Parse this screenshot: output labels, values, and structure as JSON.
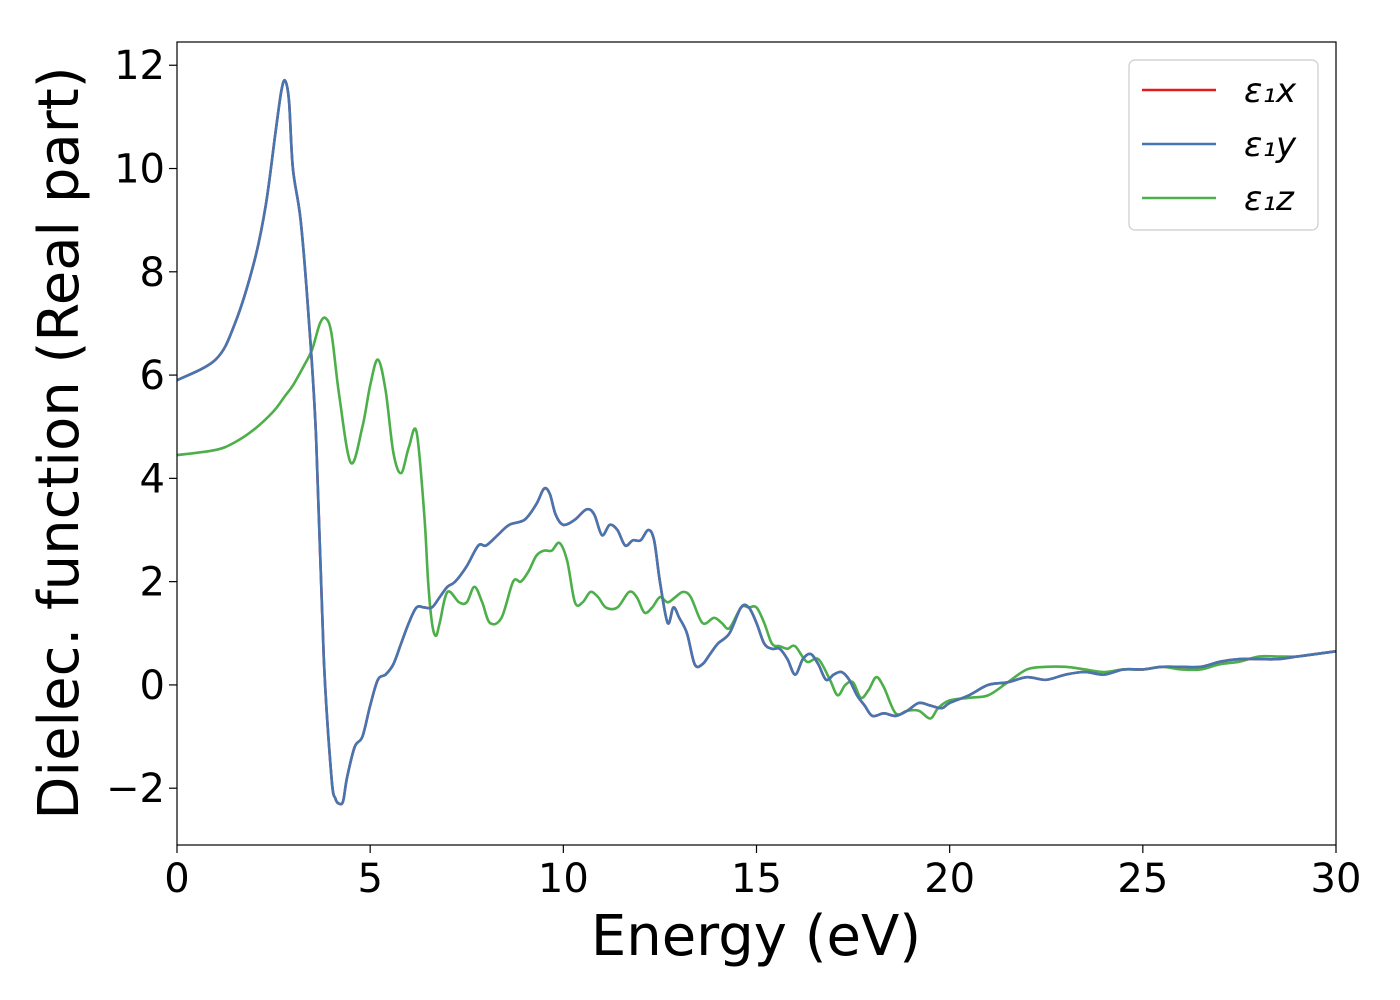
{
  "chart_data": {
    "type": "line",
    "xlabel": "Energy (eV)",
    "ylabel": "Dielec. function (Real part)",
    "xlim": [
      0,
      30
    ],
    "ylim": [
      -3.1,
      12.45
    ],
    "xticks": [
      0,
      5,
      10,
      15,
      20,
      25,
      30
    ],
    "xtick_labels": [
      "0",
      "5",
      "10",
      "15",
      "20",
      "25",
      "30"
    ],
    "yticks": [
      -2,
      0,
      2,
      4,
      6,
      8,
      10,
      12
    ],
    "ytick_labels": [
      "−2",
      "0",
      "2",
      "4",
      "6",
      "8",
      "10",
      "12"
    ],
    "grid": false,
    "legend": "top-right",
    "series": [
      {
        "name": "ε₁x",
        "color": "#e41a1c",
        "x": [
          0,
          1.0,
          1.5,
          2.0,
          2.3,
          2.55,
          2.7,
          2.8,
          2.9,
          3.0,
          3.2,
          3.4,
          3.6,
          3.8,
          4.0,
          4.1,
          4.2,
          4.3,
          4.4,
          4.6,
          4.8,
          5.0,
          5.2,
          5.4,
          5.6,
          5.8,
          6.0,
          6.2,
          6.4,
          6.6,
          6.8,
          7.0,
          7.2,
          7.5,
          7.8,
          8.0,
          8.3,
          8.6,
          9.0,
          9.3,
          9.5,
          9.65,
          9.8,
          10.0,
          10.3,
          10.6,
          10.8,
          11.0,
          11.2,
          11.4,
          11.6,
          11.8,
          12.0,
          12.2,
          12.35,
          12.5,
          12.7,
          12.85,
          13.0,
          13.2,
          13.4,
          13.6,
          13.8,
          14.0,
          14.3,
          14.6,
          14.8,
          15.0,
          15.2,
          15.4,
          15.6,
          15.8,
          16.0,
          16.2,
          16.4,
          16.6,
          16.8,
          17.0,
          17.2,
          17.4,
          17.6,
          17.8,
          18.0,
          18.3,
          18.6,
          18.9,
          19.2,
          19.5,
          19.8,
          20.0,
          20.5,
          21.0,
          21.5,
          22.0,
          22.5,
          23.0,
          23.5,
          24.0,
          24.5,
          25.0,
          25.5,
          26.0,
          26.5,
          27.0,
          27.5,
          28.0,
          28.5,
          29.0,
          29.5,
          30.0
        ],
        "y": [
          5.9,
          6.3,
          7.0,
          8.2,
          9.3,
          10.7,
          11.5,
          11.7,
          11.3,
          10.0,
          9.0,
          7.2,
          4.8,
          0.5,
          -1.8,
          -2.2,
          -2.3,
          -2.25,
          -1.8,
          -1.2,
          -1.0,
          -0.4,
          0.1,
          0.2,
          0.4,
          0.8,
          1.2,
          1.5,
          1.5,
          1.5,
          1.7,
          1.9,
          2.0,
          2.3,
          2.7,
          2.7,
          2.9,
          3.1,
          3.2,
          3.5,
          3.8,
          3.7,
          3.3,
          3.1,
          3.2,
          3.4,
          3.3,
          2.9,
          3.1,
          3.0,
          2.7,
          2.8,
          2.8,
          3.0,
          2.8,
          2.0,
          1.2,
          1.5,
          1.3,
          1.0,
          0.4,
          0.4,
          0.6,
          0.8,
          1.0,
          1.5,
          1.5,
          1.2,
          0.8,
          0.7,
          0.7,
          0.5,
          0.2,
          0.5,
          0.6,
          0.4,
          0.1,
          0.2,
          0.25,
          0.1,
          -0.2,
          -0.4,
          -0.6,
          -0.55,
          -0.6,
          -0.5,
          -0.35,
          -0.4,
          -0.45,
          -0.35,
          -0.2,
          0.0,
          0.05,
          0.15,
          0.1,
          0.2,
          0.25,
          0.2,
          0.3,
          0.3,
          0.35,
          0.35,
          0.35,
          0.45,
          0.5,
          0.5,
          0.5,
          0.55,
          0.6,
          0.65
        ]
      },
      {
        "name": "ε₁y",
        "color": "#4676b1",
        "x": [
          0,
          1.0,
          1.5,
          2.0,
          2.3,
          2.55,
          2.7,
          2.8,
          2.9,
          3.0,
          3.2,
          3.4,
          3.6,
          3.8,
          4.0,
          4.1,
          4.2,
          4.3,
          4.4,
          4.6,
          4.8,
          5.0,
          5.2,
          5.4,
          5.6,
          5.8,
          6.0,
          6.2,
          6.4,
          6.6,
          6.8,
          7.0,
          7.2,
          7.5,
          7.8,
          8.0,
          8.3,
          8.6,
          9.0,
          9.3,
          9.5,
          9.65,
          9.8,
          10.0,
          10.3,
          10.6,
          10.8,
          11.0,
          11.2,
          11.4,
          11.6,
          11.8,
          12.0,
          12.2,
          12.35,
          12.5,
          12.7,
          12.85,
          13.0,
          13.2,
          13.4,
          13.6,
          13.8,
          14.0,
          14.3,
          14.6,
          14.8,
          15.0,
          15.2,
          15.4,
          15.6,
          15.8,
          16.0,
          16.2,
          16.4,
          16.6,
          16.8,
          17.0,
          17.2,
          17.4,
          17.6,
          17.8,
          18.0,
          18.3,
          18.6,
          18.9,
          19.2,
          19.5,
          19.8,
          20.0,
          20.5,
          21.0,
          21.5,
          22.0,
          22.5,
          23.0,
          23.5,
          24.0,
          24.5,
          25.0,
          25.5,
          26.0,
          26.5,
          27.0,
          27.5,
          28.0,
          28.5,
          29.0,
          29.5,
          30.0
        ],
        "y": [
          5.9,
          6.3,
          7.0,
          8.2,
          9.3,
          10.7,
          11.5,
          11.7,
          11.3,
          10.0,
          9.0,
          7.2,
          4.8,
          0.5,
          -1.8,
          -2.2,
          -2.3,
          -2.25,
          -1.8,
          -1.2,
          -1.0,
          -0.4,
          0.1,
          0.2,
          0.4,
          0.8,
          1.2,
          1.5,
          1.5,
          1.5,
          1.7,
          1.9,
          2.0,
          2.3,
          2.7,
          2.7,
          2.9,
          3.1,
          3.2,
          3.5,
          3.8,
          3.7,
          3.3,
          3.1,
          3.2,
          3.4,
          3.3,
          2.9,
          3.1,
          3.0,
          2.7,
          2.8,
          2.8,
          3.0,
          2.8,
          2.0,
          1.2,
          1.5,
          1.3,
          1.0,
          0.4,
          0.4,
          0.6,
          0.8,
          1.0,
          1.5,
          1.5,
          1.2,
          0.8,
          0.7,
          0.7,
          0.5,
          0.2,
          0.5,
          0.6,
          0.4,
          0.1,
          0.2,
          0.25,
          0.1,
          -0.2,
          -0.4,
          -0.6,
          -0.55,
          -0.6,
          -0.5,
          -0.35,
          -0.4,
          -0.45,
          -0.35,
          -0.2,
          0.0,
          0.05,
          0.15,
          0.1,
          0.2,
          0.25,
          0.2,
          0.3,
          0.3,
          0.35,
          0.35,
          0.35,
          0.45,
          0.5,
          0.5,
          0.5,
          0.55,
          0.6,
          0.65
        ]
      },
      {
        "name": "ε₁z",
        "color": "#4daf4a",
        "x": [
          0,
          1.0,
          1.5,
          2.0,
          2.5,
          2.8,
          3.0,
          3.3,
          3.5,
          3.7,
          3.85,
          4.0,
          4.2,
          4.5,
          4.8,
          5.0,
          5.2,
          5.4,
          5.6,
          5.8,
          6.0,
          6.2,
          6.4,
          6.5,
          6.6,
          6.7,
          6.8,
          7.0,
          7.3,
          7.5,
          7.7,
          7.9,
          8.1,
          8.4,
          8.7,
          8.9,
          9.1,
          9.3,
          9.5,
          9.7,
          9.9,
          10.1,
          10.3,
          10.5,
          10.7,
          10.9,
          11.1,
          11.4,
          11.7,
          11.9,
          12.1,
          12.3,
          12.5,
          12.7,
          12.9,
          13.1,
          13.3,
          13.6,
          13.9,
          14.1,
          14.3,
          14.6,
          14.8,
          15.0,
          15.2,
          15.4,
          15.6,
          15.8,
          16.0,
          16.3,
          16.6,
          16.9,
          17.1,
          17.3,
          17.5,
          17.7,
          17.9,
          18.1,
          18.3,
          18.6,
          18.9,
          19.2,
          19.5,
          19.7,
          20.0,
          20.5,
          21.0,
          21.5,
          22.0,
          22.5,
          23.0,
          23.5,
          24.0,
          24.5,
          25.0,
          25.5,
          26.0,
          26.5,
          27.0,
          27.5,
          28.0,
          28.5,
          29.0,
          29.5,
          30.0
        ],
        "y": [
          4.45,
          4.55,
          4.7,
          4.95,
          5.3,
          5.6,
          5.8,
          6.2,
          6.5,
          7.0,
          7.1,
          6.8,
          5.6,
          4.3,
          5.0,
          5.8,
          6.3,
          5.7,
          4.5,
          4.1,
          4.6,
          4.9,
          3.3,
          2.0,
          1.2,
          0.95,
          1.2,
          1.8,
          1.6,
          1.6,
          1.9,
          1.6,
          1.2,
          1.3,
          2.0,
          2.0,
          2.2,
          2.5,
          2.6,
          2.6,
          2.75,
          2.4,
          1.6,
          1.6,
          1.8,
          1.7,
          1.5,
          1.5,
          1.8,
          1.7,
          1.4,
          1.5,
          1.7,
          1.6,
          1.7,
          1.8,
          1.7,
          1.2,
          1.3,
          1.2,
          1.1,
          1.5,
          1.5,
          1.5,
          1.2,
          0.8,
          0.75,
          0.7,
          0.75,
          0.45,
          0.5,
          0.1,
          -0.2,
          0.0,
          0.05,
          -0.25,
          -0.1,
          0.15,
          -0.05,
          -0.55,
          -0.5,
          -0.5,
          -0.65,
          -0.45,
          -0.3,
          -0.25,
          -0.2,
          0.05,
          0.3,
          0.35,
          0.35,
          0.3,
          0.25,
          0.3,
          0.3,
          0.35,
          0.3,
          0.3,
          0.4,
          0.45,
          0.55,
          0.55,
          0.55,
          0.6,
          0.65
        ]
      }
    ]
  }
}
